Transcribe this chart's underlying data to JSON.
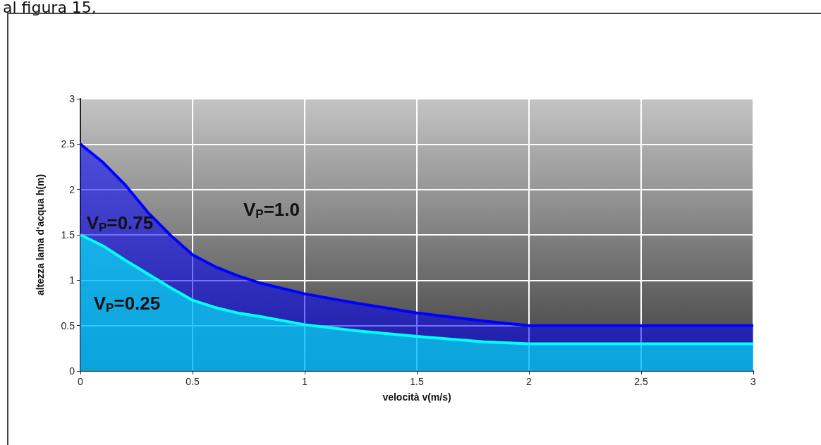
{
  "chart_data": {
    "type": "area",
    "xlabel": "velocità v(m/s)",
    "ylabel": "altezza lama d'acqua h(m)",
    "xlim": [
      0,
      3
    ],
    "xticks": [
      0,
      0.5,
      1,
      1.5,
      2,
      2.5,
      3
    ],
    "ylim": [
      0,
      3
    ],
    "yticks": [
      0,
      0.5,
      1,
      1.5,
      2,
      2.5,
      3
    ],
    "grid": true,
    "series": [
      {
        "color": "#0000ff",
        "x": [
          0,
          0.1,
          0.2,
          0.3,
          0.4,
          0.5,
          0.6,
          0.7,
          0.8,
          1.0,
          1.2,
          1.5,
          1.8,
          2.0,
          2.5,
          3.0
        ],
        "values": [
          2.5,
          2.3,
          2.05,
          1.75,
          1.5,
          1.28,
          1.15,
          1.05,
          0.97,
          0.85,
          0.76,
          0.64,
          0.55,
          0.5,
          0.5,
          0.5
        ]
      },
      {
        "color": "#00ffff",
        "x": [
          0,
          0.1,
          0.2,
          0.3,
          0.4,
          0.5,
          0.6,
          0.7,
          0.8,
          1.0,
          1.2,
          1.5,
          1.8,
          2.0,
          2.5,
          3.0
        ],
        "values": [
          1.5,
          1.38,
          1.22,
          1.07,
          0.92,
          0.78,
          0.7,
          0.64,
          0.6,
          0.51,
          0.45,
          0.38,
          0.32,
          0.3,
          0.3,
          0.3
        ]
      }
    ],
    "annotations": [
      "al figura 15.",
      "V$_{P}$=1.0",
      "V$_{P}$=0.75",
      "V$_{P}$=0.25"
    ]
  }
}
